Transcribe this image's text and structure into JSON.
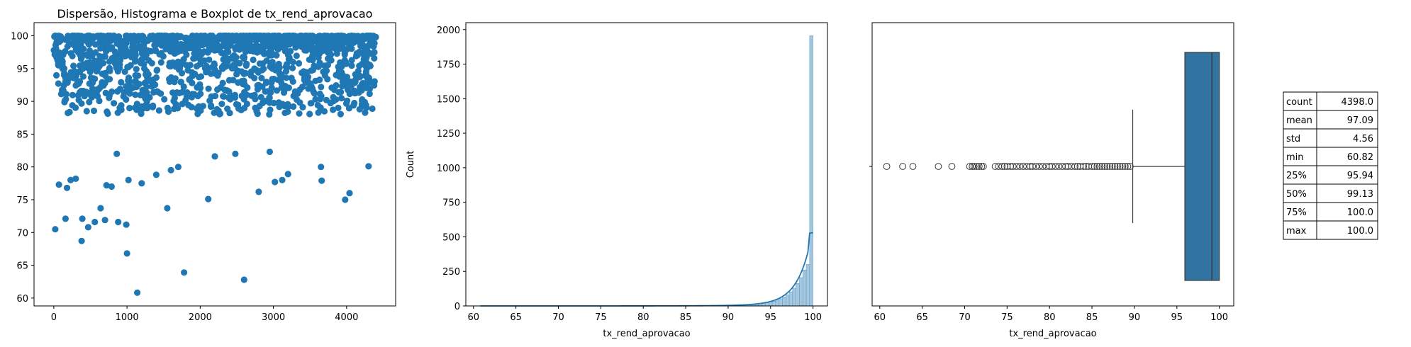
{
  "title": "Dispersão, Histograma e Boxplot de tx_rend_aprovacao",
  "colors": {
    "series": "#1f77b4",
    "hist_fill": "#a5c8e1",
    "box_fill": "#3274a1",
    "axis": "#000000"
  },
  "chart_data": [
    {
      "type": "scatter",
      "title": "Dispersão, Histograma e Boxplot de tx_rend_aprovacao",
      "xlim": [
        -270,
        4670
      ],
      "ylim": [
        58.8,
        102.0
      ],
      "xticks": [
        0,
        1000,
        2000,
        3000,
        4000
      ],
      "yticks": [
        60,
        65,
        70,
        75,
        80,
        85,
        90,
        95,
        100
      ],
      "n_points": 4398,
      "outliers": [
        [
          1140,
          60.82
        ],
        [
          1780,
          63.9
        ],
        [
          2600,
          62.8
        ],
        [
          1000,
          66.8
        ],
        [
          380,
          68.7
        ],
        [
          20,
          70.5
        ],
        [
          470,
          70.8
        ],
        [
          560,
          71.6
        ],
        [
          700,
          71.9
        ],
        [
          880,
          71.6
        ],
        [
          990,
          71.2
        ],
        [
          160,
          72.1
        ],
        [
          390,
          72.1
        ],
        [
          1550,
          73.7
        ],
        [
          640,
          73.7
        ],
        [
          2110,
          75.1
        ],
        [
          3980,
          75.0
        ],
        [
          4040,
          76.0
        ],
        [
          2800,
          76.2
        ],
        [
          1200,
          77.5
        ],
        [
          1400,
          78.8
        ],
        [
          3660,
          77.9
        ],
        [
          3020,
          77.7
        ],
        [
          3120,
          78.0
        ],
        [
          3200,
          78.9
        ],
        [
          70,
          77.3
        ],
        [
          180,
          76.8
        ],
        [
          230,
          78.0
        ],
        [
          300,
          78.2
        ],
        [
          720,
          77.2
        ],
        [
          790,
          77.0
        ],
        [
          1020,
          78.0
        ],
        [
          1700,
          80.0
        ],
        [
          2480,
          82.0
        ],
        [
          2950,
          82.3
        ],
        [
          4300,
          80.1
        ],
        [
          3650,
          80.0
        ],
        [
          1600,
          79.5
        ],
        [
          2200,
          81.6
        ],
        [
          860,
          82.0
        ]
      ]
    },
    {
      "type": "histogram",
      "xlabel": "tx_rend_aprovacao",
      "ylabel": "Count",
      "xlim": [
        59.1,
        101.7
      ],
      "ylim": [
        0,
        2050
      ],
      "xticks": [
        60,
        65,
        70,
        75,
        80,
        85,
        90,
        95,
        100
      ],
      "yticks": [
        0,
        250,
        500,
        750,
        1000,
        1250,
        1500,
        1750,
        2000
      ],
      "bin_width": 0.4,
      "bins_from": 99.2,
      "bin_counts_top": [
        300,
        1955
      ],
      "kde_peak": 530
    },
    {
      "type": "boxplot",
      "xlabel": "tx_rend_aprovacao",
      "xlim": [
        59.1,
        101.7
      ],
      "xticks": [
        60,
        65,
        70,
        75,
        80,
        85,
        90,
        95,
        100
      ],
      "q1": 95.94,
      "median": 99.13,
      "q3": 100.0,
      "whisker_low": 89.8,
      "whisker_high": 100.0,
      "outliers": [
        60.82,
        62.7,
        63.9,
        66.9,
        68.5,
        70.6,
        70.9,
        71.1,
        71.4,
        71.7,
        72.0,
        72.2,
        73.6,
        74.0,
        74.4,
        74.7,
        75.0,
        75.4,
        75.7,
        76.1,
        76.5,
        76.9,
        77.3,
        77.7,
        78.0,
        78.4,
        78.8,
        79.2,
        79.6,
        80.0,
        80.3,
        80.7,
        81.1,
        81.5,
        81.9,
        82.2,
        82.6,
        83.0,
        83.3,
        83.6,
        84.0,
        84.3,
        84.6,
        85.0,
        85.3,
        85.6,
        85.9,
        86.2,
        86.5,
        86.8,
        87.1,
        87.4,
        87.7,
        88.0,
        88.3,
        88.6,
        88.9,
        89.2,
        89.5
      ]
    },
    {
      "type": "table",
      "rows": [
        [
          "count",
          "4398.0"
        ],
        [
          "mean",
          "97.09"
        ],
        [
          "std",
          "4.56"
        ],
        [
          "min",
          "60.82"
        ],
        [
          "25%",
          "95.94"
        ],
        [
          "50%",
          "99.13"
        ],
        [
          "75%",
          "100.0"
        ],
        [
          "max",
          "100.0"
        ]
      ]
    }
  ]
}
